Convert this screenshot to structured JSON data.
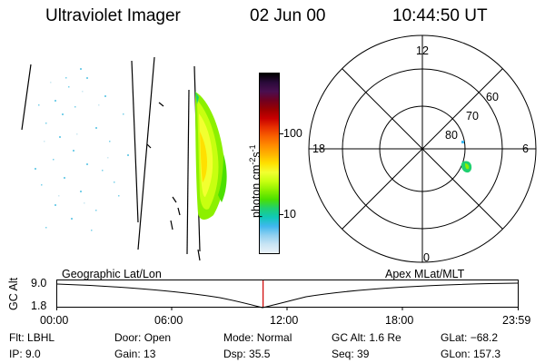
{
  "header": {
    "instrument": "Ultraviolet Imager",
    "date": "02 Jun 00",
    "time": "10:44:50 UT"
  },
  "colorbar": {
    "label_main": "photon cm",
    "label_sup1": "-2",
    "label_s": "s",
    "label_sup2": "-1",
    "ticks": [
      "100",
      "10"
    ],
    "colors": [
      "#000000",
      "#2a0a3a",
      "#4a0f50",
      "#700020",
      "#9a0000",
      "#c80000",
      "#e83000",
      "#f86000",
      "#ff8c00",
      "#ffb400",
      "#ffe000",
      "#f2ff30",
      "#c8ff10",
      "#8cf000",
      "#4ce000",
      "#20d070",
      "#10c8b8",
      "#40b8ee",
      "#90d0f0",
      "#c8e4f4",
      "#eaf2f8"
    ]
  },
  "polar": {
    "mlt_labels": {
      "top": "12",
      "left": "18",
      "right": "6",
      "bottom": "0"
    },
    "lat_labels": [
      "60",
      "70",
      "80"
    ]
  },
  "timeline": {
    "ylabel": "GC Alt",
    "y_top": "9.0",
    "y_bottom": "1.8",
    "left_title": "Geographic Lat/Lon",
    "right_title": "Apex MLat/MLT",
    "ticks": [
      "00:00",
      "06:00",
      "12:00",
      "18:00",
      "23:59"
    ],
    "current_fraction": 0.447
  },
  "info": {
    "row1": [
      {
        "label": "Flt:",
        "value": "LBHL"
      },
      {
        "label": "Door:",
        "value": "Open"
      },
      {
        "label": "Mode:",
        "value": "Normal"
      },
      {
        "label": "GC Alt:",
        "value": "1.6 Re"
      },
      {
        "label": "GLat:",
        "value": "−68.2"
      }
    ],
    "row2": [
      {
        "label": "IP:",
        "value": "9.0"
      },
      {
        "label": "Gain:",
        "value": "13"
      },
      {
        "label": "Dsp:",
        "value": "35.5"
      },
      {
        "label": "Seq:",
        "value": "39"
      },
      {
        "label": "GLon:",
        "value": "157.3"
      }
    ]
  }
}
